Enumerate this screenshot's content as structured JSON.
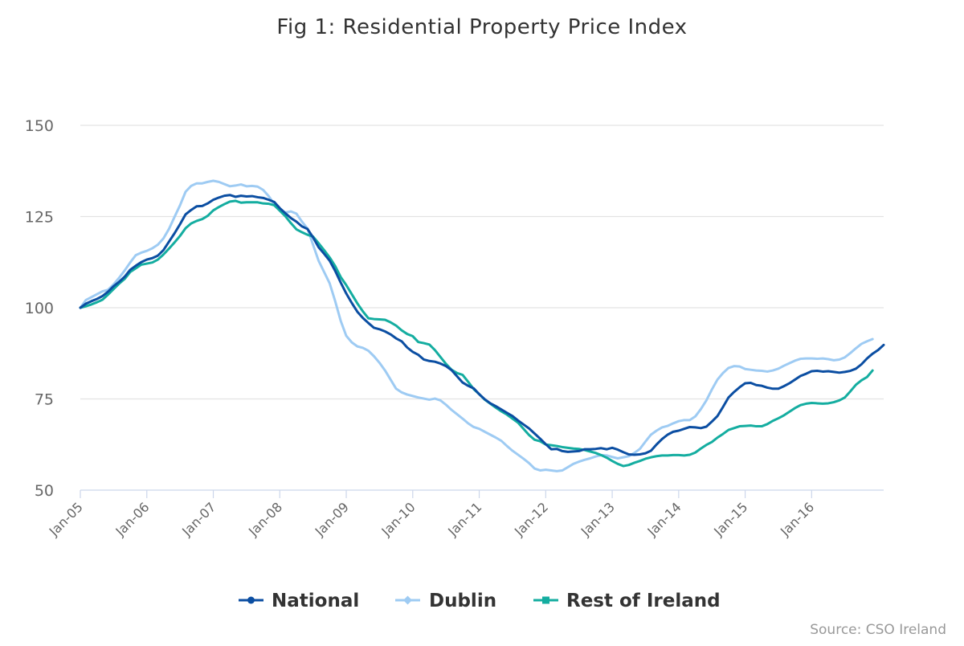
{
  "chart_data": {
    "type": "line",
    "title": "Fig 1: Residential Property Price Index",
    "xlabel": "",
    "ylabel": "",
    "ylim": [
      50,
      150
    ],
    "yticks": [
      50,
      75,
      100,
      125,
      150
    ],
    "x_ticks": [
      "Jan-05",
      "Jan-06",
      "Jan-07",
      "Jan-08",
      "Jan-09",
      "Jan-10",
      "Jan-11",
      "Jan-12",
      "Jan-13",
      "Jan-14",
      "Jan-15",
      "Jan-16"
    ],
    "x_start": "2005-01",
    "x_end": "2016-11",
    "grid": "horizontal",
    "legend": "bottom",
    "series": [
      {
        "name": "National",
        "color": "#0b4ea2",
        "marker": "circle",
        "values": [
          100.0,
          101.1,
          101.8,
          102.4,
          103.2,
          104.4,
          105.9,
          107.1,
          108.5,
          110.4,
          111.5,
          112.5,
          113.2,
          113.6,
          114.3,
          115.8,
          118.1,
          120.4,
          122.9,
          125.6,
          126.8,
          127.8,
          127.9,
          128.6,
          129.6,
          130.2,
          130.7,
          130.9,
          130.4,
          130.7,
          130.5,
          130.6,
          130.3,
          130.1,
          129.6,
          129.0,
          127.3,
          125.9,
          124.6,
          123.6,
          122.3,
          121.6,
          119.3,
          116.6,
          114.8,
          112.9,
          110.1,
          106.9,
          103.9,
          101.3,
          98.9,
          97.2,
          95.8,
          94.5,
          94.1,
          93.5,
          92.7,
          91.6,
          90.8,
          89.1,
          87.9,
          87.1,
          85.8,
          85.4,
          85.2,
          84.7,
          84.0,
          82.9,
          81.2,
          79.5,
          78.6,
          77.9,
          76.3,
          74.9,
          73.8,
          73.0,
          72.1,
          71.2,
          70.3,
          69.1,
          68.0,
          66.9,
          65.5,
          64.1,
          62.6,
          61.2,
          61.3,
          60.7,
          60.5,
          60.6,
          60.7,
          61.2,
          61.2,
          61.3,
          61.5,
          61.2,
          61.6,
          61.1,
          60.4,
          59.8,
          59.7,
          59.8,
          60.1,
          60.8,
          62.5,
          64.0,
          65.2,
          66.0,
          66.3,
          66.8,
          67.3,
          67.2,
          67.0,
          67.4,
          68.8,
          70.3,
          72.8,
          75.4,
          76.9,
          78.2,
          79.3,
          79.4,
          78.8,
          78.6,
          78.1,
          77.8,
          77.8,
          78.5,
          79.3,
          80.3,
          81.3,
          81.9,
          82.6,
          82.7,
          82.5,
          82.6,
          82.4,
          82.2,
          82.4,
          82.7,
          83.3,
          84.5,
          86.1,
          87.4,
          88.4,
          89.8
        ]
      },
      {
        "name": "Dublin",
        "color": "#9ecbf3",
        "marker": "diamond",
        "values": [
          100.0,
          102.1,
          102.9,
          103.7,
          104.5,
          104.9,
          106.4,
          108.2,
          110.2,
          112.4,
          114.4,
          115.1,
          115.6,
          116.3,
          117.3,
          119.0,
          121.6,
          124.9,
          128.1,
          131.8,
          133.4,
          134.1,
          134.1,
          134.5,
          134.8,
          134.5,
          133.9,
          133.3,
          133.5,
          133.8,
          133.3,
          133.4,
          133.2,
          132.3,
          130.6,
          128.4,
          126.9,
          126.1,
          126.4,
          125.8,
          123.6,
          121.7,
          117.3,
          112.9,
          109.8,
          106.7,
          101.8,
          96.4,
          92.3,
          90.5,
          89.4,
          89.0,
          88.2,
          86.7,
          84.9,
          82.8,
          80.3,
          77.8,
          76.8,
          76.2,
          75.8,
          75.4,
          75.1,
          74.8,
          75.1,
          74.6,
          73.4,
          72.0,
          70.8,
          69.6,
          68.3,
          67.3,
          66.8,
          66.0,
          65.2,
          64.4,
          63.5,
          62.1,
          60.8,
          59.7,
          58.6,
          57.4,
          55.9,
          55.4,
          55.6,
          55.4,
          55.2,
          55.4,
          56.3,
          57.2,
          57.8,
          58.3,
          58.7,
          59.2,
          59.6,
          59.5,
          59.1,
          58.7,
          59.0,
          59.3,
          60.2,
          61.3,
          63.3,
          65.2,
          66.3,
          67.2,
          67.6,
          68.3,
          68.9,
          69.2,
          69.2,
          70.2,
          72.2,
          74.6,
          77.6,
          80.3,
          82.1,
          83.5,
          84.0,
          83.9,
          83.2,
          83.0,
          82.8,
          82.7,
          82.5,
          82.8,
          83.3,
          84.1,
          84.8,
          85.5,
          86.0,
          86.1,
          86.1,
          86.0,
          86.1,
          85.9,
          85.6,
          85.8,
          86.4,
          87.6,
          88.9,
          90.1,
          90.8,
          91.4
        ]
      },
      {
        "name": "Rest of Ireland",
        "color": "#14ada0",
        "marker": "square",
        "values": [
          100.0,
          100.4,
          100.9,
          101.5,
          102.2,
          103.6,
          105.1,
          106.6,
          107.9,
          109.8,
          110.8,
          111.8,
          112.1,
          112.4,
          113.2,
          114.6,
          116.2,
          117.9,
          119.7,
          121.8,
          123.1,
          123.8,
          124.3,
          125.2,
          126.7,
          127.6,
          128.4,
          129.1,
          129.3,
          128.8,
          128.9,
          128.9,
          128.9,
          128.6,
          128.5,
          128.1,
          126.6,
          125.1,
          123.2,
          121.5,
          120.7,
          120.0,
          119.5,
          117.7,
          115.8,
          113.8,
          111.4,
          108.4,
          106.2,
          103.7,
          101.2,
          99.0,
          97.1,
          96.9,
          96.8,
          96.7,
          96.0,
          95.1,
          93.8,
          92.8,
          92.2,
          90.6,
          90.3,
          89.9,
          88.4,
          86.5,
          84.6,
          83.0,
          82.1,
          81.6,
          79.7,
          77.7,
          76.3,
          74.8,
          73.7,
          72.6,
          71.6,
          70.7,
          69.6,
          68.5,
          66.8,
          65.1,
          63.8,
          63.4,
          62.5,
          62.3,
          62.1,
          61.8,
          61.6,
          61.4,
          61.3,
          61.0,
          60.6,
          60.2,
          59.6,
          58.9,
          58.0,
          57.2,
          56.6,
          56.9,
          57.5,
          58.0,
          58.6,
          59.0,
          59.3,
          59.5,
          59.5,
          59.6,
          59.6,
          59.5,
          59.7,
          60.3,
          61.4,
          62.4,
          63.2,
          64.4,
          65.4,
          66.5,
          67.0,
          67.5,
          67.6,
          67.7,
          67.5,
          67.5,
          68.1,
          69.0,
          69.7,
          70.5,
          71.5,
          72.5,
          73.3,
          73.7,
          73.9,
          73.8,
          73.7,
          73.8,
          74.1,
          74.6,
          75.4,
          77.1,
          78.9,
          80.1,
          81.0,
          82.8
        ]
      }
    ],
    "source": "Source: CSO Ireland"
  }
}
